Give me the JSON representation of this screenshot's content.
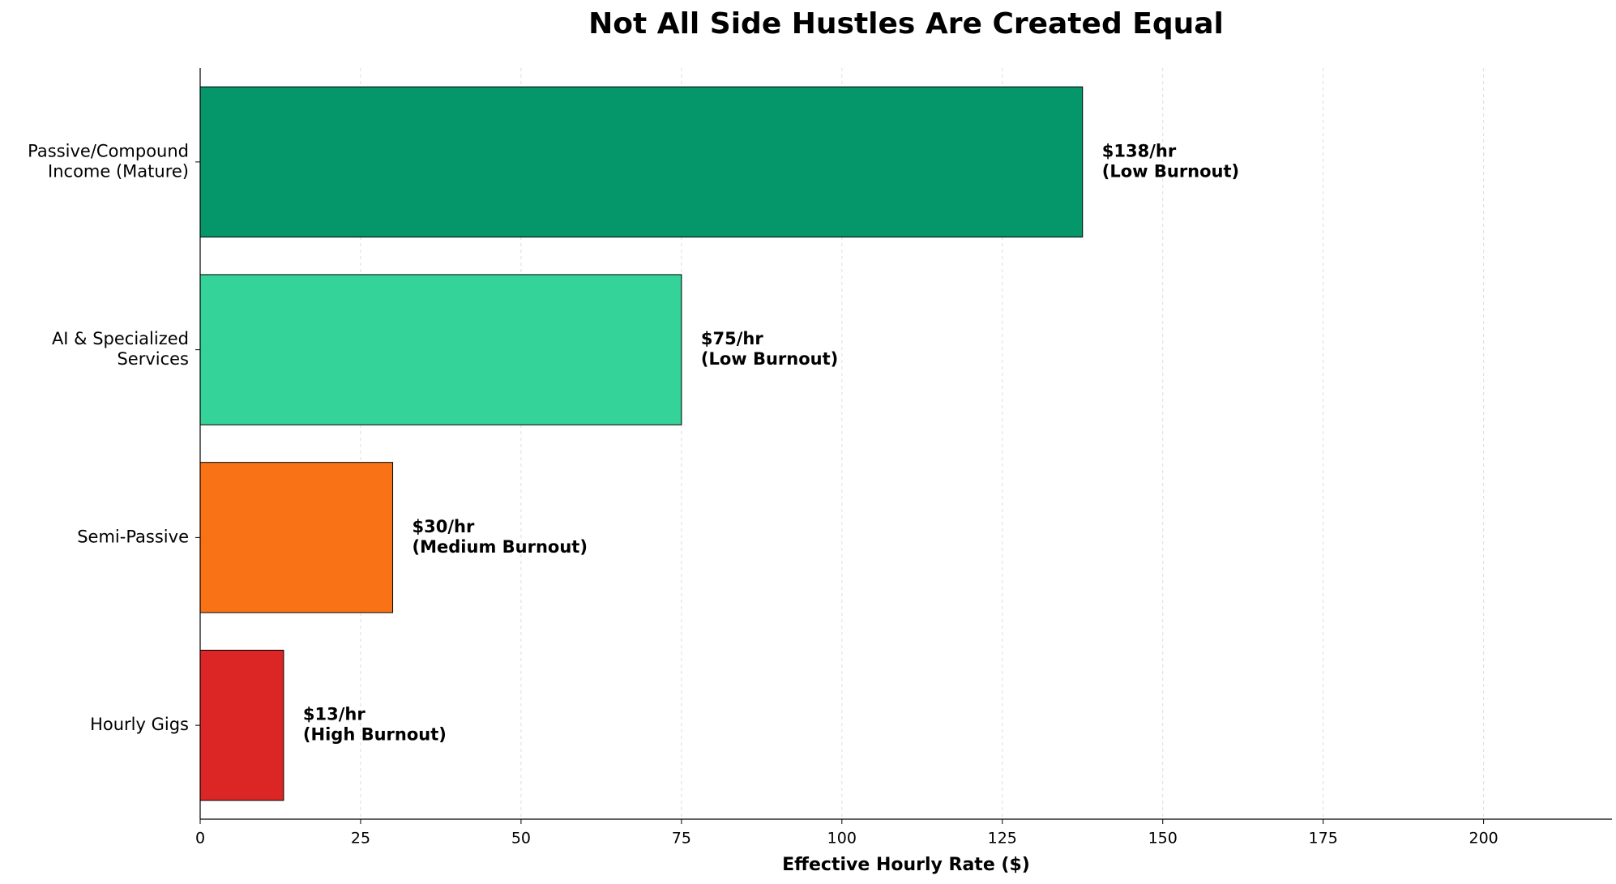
{
  "chart_data": {
    "type": "hbar",
    "title": "Not All Side Hustles Are Created Equal",
    "x_label": "Effective Hourly Rate ($)",
    "categories": [
      "Passive/Compound\nIncome (Mature)",
      "AI & Specialized\nServices",
      "Semi-Passive",
      "Hourly Gigs"
    ],
    "values": [
      137.5,
      75,
      30,
      13
    ],
    "value_labels": [
      "$138/hr\n(Low Burnout)",
      "$75/hr\n(Low Burnout)",
      "$30/hr\n(Medium Burnout)",
      "$13/hr\n(High Burnout)"
    ],
    "colors": [
      "#059669",
      "#34d399",
      "#f97316",
      "#dc2626"
    ],
    "xlim": [
      0,
      220
    ],
    "xticks": [
      0,
      25,
      50,
      75,
      100,
      125,
      150,
      175,
      200
    ],
    "grid": true
  }
}
